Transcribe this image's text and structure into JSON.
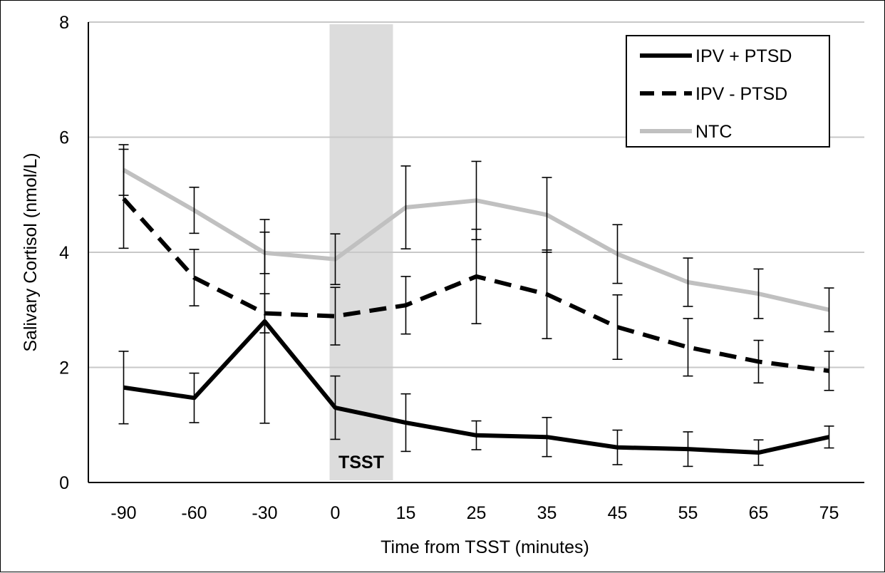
{
  "chart_data": {
    "type": "line",
    "title": "",
    "xlabel": "Time from TSST (minutes)",
    "ylabel": "Salivary Cortisol (nmol/L)",
    "categories": [
      "-90",
      "-60",
      "-30",
      "0",
      "15",
      "25",
      "35",
      "45",
      "55",
      "65",
      "75"
    ],
    "ylim": [
      0,
      8
    ],
    "yticks": [
      0,
      2,
      4,
      6,
      8
    ],
    "grid": true,
    "legend_position": "top-right",
    "shaded_band": {
      "label": "TSST",
      "from": "0",
      "to": "15",
      "color": "#dcdcdc"
    },
    "series": [
      {
        "name": "IPV + PTSD",
        "style": "solid",
        "color": "#000000",
        "values": [
          1.65,
          1.47,
          2.8,
          1.3,
          1.04,
          0.82,
          0.79,
          0.61,
          0.58,
          0.52,
          0.79
        ],
        "errors": [
          0.63,
          0.43,
          1.77,
          0.55,
          0.5,
          0.25,
          0.34,
          0.3,
          0.3,
          0.22,
          0.19
        ]
      },
      {
        "name": "IPV - PTSD",
        "style": "dashed",
        "color": "#000000",
        "values": [
          4.93,
          3.56,
          2.94,
          2.89,
          3.08,
          3.58,
          3.27,
          2.7,
          2.35,
          2.1,
          1.94
        ],
        "errors": [
          0.86,
          0.49,
          0.34,
          0.5,
          0.5,
          0.82,
          0.77,
          0.56,
          0.5,
          0.37,
          0.34
        ]
      },
      {
        "name": "NTC",
        "style": "solid",
        "color": "#c0c0c0",
        "values": [
          5.43,
          4.73,
          3.99,
          3.88,
          4.78,
          4.9,
          4.65,
          3.97,
          3.48,
          3.28,
          3.0
        ],
        "errors": [
          0.44,
          0.4,
          0.36,
          0.44,
          0.72,
          0.68,
          0.65,
          0.51,
          0.42,
          0.43,
          0.38
        ]
      }
    ]
  }
}
